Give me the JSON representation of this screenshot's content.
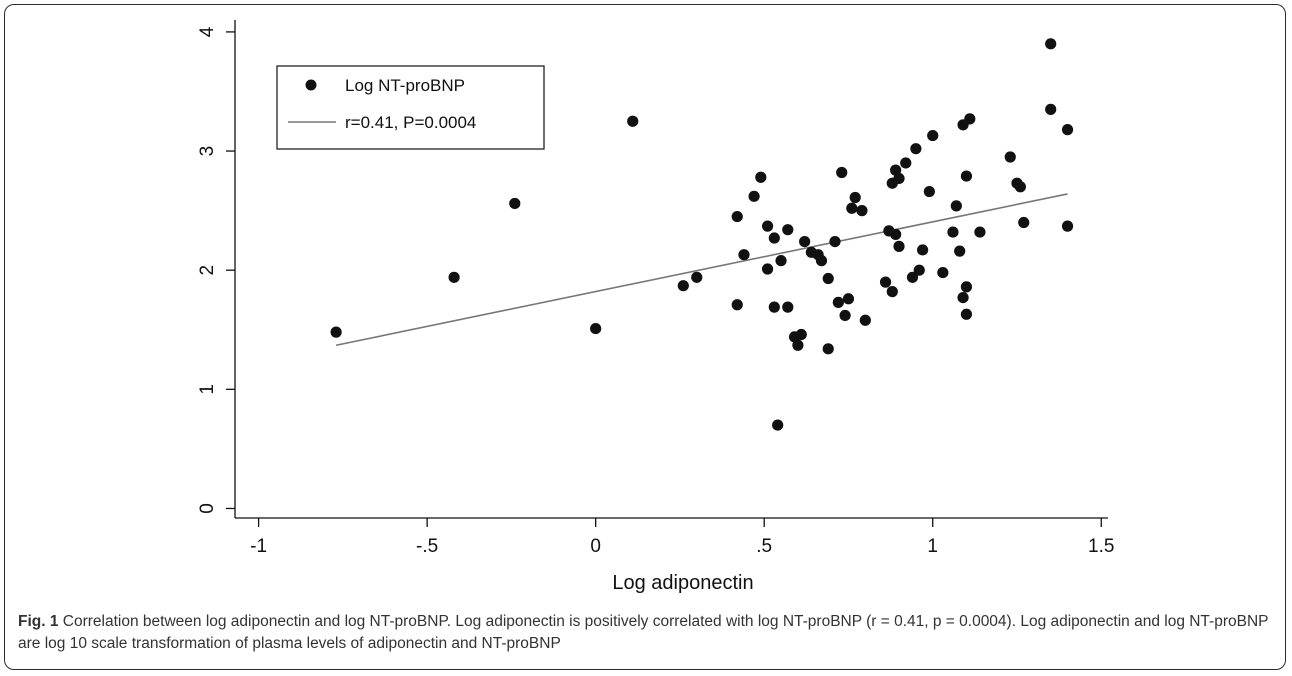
{
  "chart_data": {
    "type": "scatter",
    "xlabel": "Log adiponectin",
    "ylabel": "",
    "xlim": [
      -1.07,
      1.52
    ],
    "ylim": [
      -0.08,
      4.1
    ],
    "x_ticks": [
      -1,
      -0.5,
      0,
      0.5,
      1,
      1.5
    ],
    "x_tick_labels": [
      "-1",
      "-.5",
      "0",
      ".5",
      "1",
      "1.5"
    ],
    "y_ticks": [
      0,
      1,
      2,
      3,
      4
    ],
    "y_tick_labels": [
      "0",
      "1",
      "2",
      "3",
      "4"
    ],
    "grid": false,
    "legend_position": "top-left",
    "legend": [
      {
        "label": "Log NT-proBNP",
        "kind": "marker"
      },
      {
        "label": "r=0.41, P=0.0004",
        "kind": "line"
      }
    ],
    "fit_line": {
      "x": [
        -0.77,
        1.4
      ],
      "y": [
        1.37,
        2.64
      ],
      "color": "#777777"
    },
    "marker_color": "#111111",
    "points": [
      {
        "x": -0.77,
        "y": 1.48
      },
      {
        "x": -0.42,
        "y": 1.94
      },
      {
        "x": -0.24,
        "y": 2.56
      },
      {
        "x": 0.0,
        "y": 1.51
      },
      {
        "x": 0.11,
        "y": 3.25
      },
      {
        "x": 0.26,
        "y": 1.87
      },
      {
        "x": 0.3,
        "y": 1.94
      },
      {
        "x": 0.42,
        "y": 2.45
      },
      {
        "x": 0.42,
        "y": 1.71
      },
      {
        "x": 0.44,
        "y": 2.13
      },
      {
        "x": 0.47,
        "y": 2.62
      },
      {
        "x": 0.49,
        "y": 2.78
      },
      {
        "x": 0.51,
        "y": 2.37
      },
      {
        "x": 0.51,
        "y": 2.01
      },
      {
        "x": 0.53,
        "y": 2.27
      },
      {
        "x": 0.53,
        "y": 1.69
      },
      {
        "x": 0.55,
        "y": 2.08
      },
      {
        "x": 0.54,
        "y": 0.7
      },
      {
        "x": 0.57,
        "y": 2.34
      },
      {
        "x": 0.57,
        "y": 1.69
      },
      {
        "x": 0.59,
        "y": 1.44
      },
      {
        "x": 0.6,
        "y": 1.37
      },
      {
        "x": 0.61,
        "y": 1.46
      },
      {
        "x": 0.62,
        "y": 2.24
      },
      {
        "x": 0.64,
        "y": 2.15
      },
      {
        "x": 0.66,
        "y": 2.13
      },
      {
        "x": 0.67,
        "y": 2.08
      },
      {
        "x": 0.69,
        "y": 1.93
      },
      {
        "x": 0.69,
        "y": 1.34
      },
      {
        "x": 0.71,
        "y": 2.24
      },
      {
        "x": 0.72,
        "y": 1.73
      },
      {
        "x": 0.73,
        "y": 2.82
      },
      {
        "x": 0.74,
        "y": 1.62
      },
      {
        "x": 0.75,
        "y": 1.76
      },
      {
        "x": 0.76,
        "y": 2.52
      },
      {
        "x": 0.77,
        "y": 2.61
      },
      {
        "x": 0.79,
        "y": 2.5
      },
      {
        "x": 0.8,
        "y": 1.58
      },
      {
        "x": 0.86,
        "y": 1.9
      },
      {
        "x": 0.87,
        "y": 2.33
      },
      {
        "x": 0.88,
        "y": 2.73
      },
      {
        "x": 0.88,
        "y": 1.82
      },
      {
        "x": 0.89,
        "y": 2.84
      },
      {
        "x": 0.89,
        "y": 2.3
      },
      {
        "x": 0.9,
        "y": 2.77
      },
      {
        "x": 0.9,
        "y": 2.2
      },
      {
        "x": 0.92,
        "y": 2.9
      },
      {
        "x": 0.94,
        "y": 1.94
      },
      {
        "x": 0.95,
        "y": 3.02
      },
      {
        "x": 0.97,
        "y": 2.17
      },
      {
        "x": 0.96,
        "y": 2.0
      },
      {
        "x": 0.99,
        "y": 2.66
      },
      {
        "x": 1.0,
        "y": 3.13
      },
      {
        "x": 1.03,
        "y": 1.98
      },
      {
        "x": 1.06,
        "y": 2.32
      },
      {
        "x": 1.07,
        "y": 2.54
      },
      {
        "x": 1.08,
        "y": 2.16
      },
      {
        "x": 1.09,
        "y": 3.22
      },
      {
        "x": 1.09,
        "y": 1.77
      },
      {
        "x": 1.1,
        "y": 2.79
      },
      {
        "x": 1.11,
        "y": 3.27
      },
      {
        "x": 1.1,
        "y": 1.86
      },
      {
        "x": 1.1,
        "y": 1.63
      },
      {
        "x": 1.14,
        "y": 2.32
      },
      {
        "x": 1.23,
        "y": 2.95
      },
      {
        "x": 1.25,
        "y": 2.73
      },
      {
        "x": 1.26,
        "y": 2.7
      },
      {
        "x": 1.27,
        "y": 2.4
      },
      {
        "x": 1.35,
        "y": 3.9
      },
      {
        "x": 1.35,
        "y": 3.35
      },
      {
        "x": 1.4,
        "y": 3.18
      },
      {
        "x": 1.4,
        "y": 2.37
      }
    ]
  },
  "caption": {
    "lead": "Fig. 1",
    "text": " Correlation between log adiponectin and log NT-proBNP. Log adiponectin is positively correlated with log NT-proBNP (r = 0.41, p = 0.0004). Log adiponectin and log NT-proBNP are log 10 scale transformation of plasma levels of adiponectin and NT-proBNP"
  }
}
